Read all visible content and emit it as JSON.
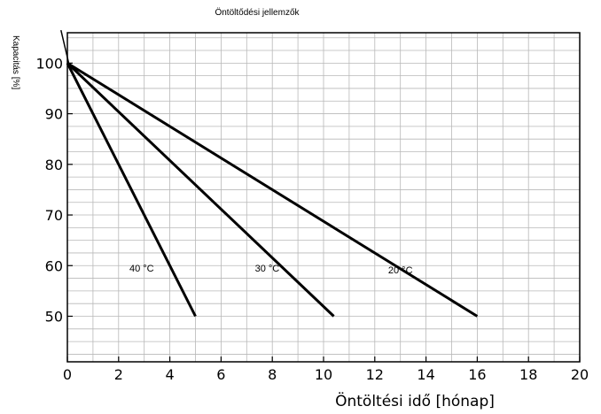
{
  "chart_data": {
    "type": "line",
    "title": "Öntöltődési jellemzők",
    "xlabel": "Öntöltési idő [hónap]",
    "ylabel": "Kapacitás [%]",
    "xlim": [
      0,
      20
    ],
    "ylim": [
      41,
      106
    ],
    "x_ticks": [
      "0",
      "2",
      "4",
      "6",
      "8",
      "10",
      "12",
      "14",
      "16",
      "18",
      "20"
    ],
    "y_ticks": [
      "50",
      "60",
      "70",
      "80",
      "90",
      "100"
    ],
    "grid": true,
    "series": [
      {
        "name": "40 °C",
        "x": [
          0,
          5
        ],
        "y": [
          100,
          50
        ]
      },
      {
        "name": "30 °C",
        "x": [
          0,
          10.4
        ],
        "y": [
          100,
          50
        ]
      },
      {
        "name": "20 °C",
        "x": [
          0,
          16
        ],
        "y": [
          100,
          50
        ]
      }
    ]
  }
}
